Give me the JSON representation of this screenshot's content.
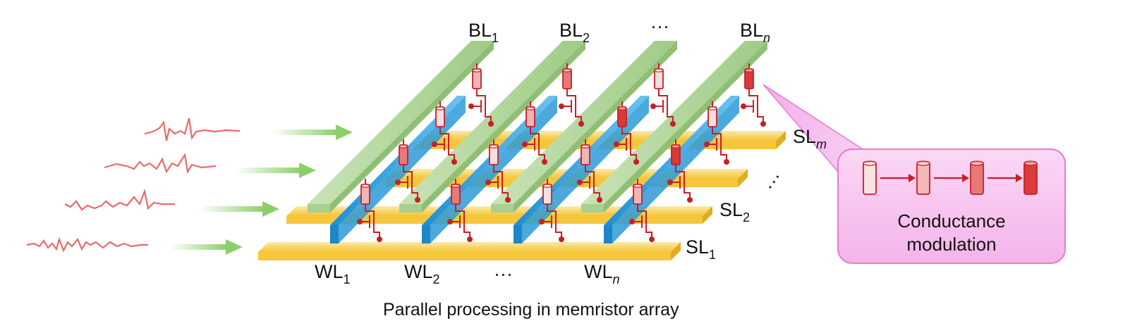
{
  "caption": "Parallel processing in memristor array",
  "bit_lines": [
    {
      "name": "BL",
      "sub": "1",
      "italic": false
    },
    {
      "name": "BL",
      "sub": "2",
      "italic": false
    },
    {
      "name": "BL",
      "sub": "n",
      "italic": true
    }
  ],
  "word_lines": [
    {
      "name": "WL",
      "sub": "1",
      "italic": false
    },
    {
      "name": "WL",
      "sub": "2",
      "italic": false
    },
    {
      "name": "WL",
      "sub": "n",
      "italic": true
    }
  ],
  "source_lines": [
    {
      "name": "SL",
      "sub": "m",
      "italic": true
    },
    {
      "name": "SL",
      "sub": "2",
      "italic": false
    },
    {
      "name": "SL",
      "sub": "1",
      "italic": false
    }
  ],
  "ellipsis": "···",
  "callout": {
    "line1": "Conductance",
    "line2": "modulation"
  },
  "colors": {
    "bit_line": "#b4d6a0",
    "word_line": "#3ea6e0",
    "source_line": "#f8cf4a",
    "memristor": "#e05a5a",
    "wire": "#c42027",
    "signal": "#e96a6a",
    "input_arrow": "#8ccf6a",
    "callout_fill": "#f7c7f0",
    "callout_border": "#e67ad6"
  },
  "icons": [
    "input-signal-waveform",
    "input-arrow",
    "memristor",
    "transistor",
    "conductance-arrow"
  ]
}
